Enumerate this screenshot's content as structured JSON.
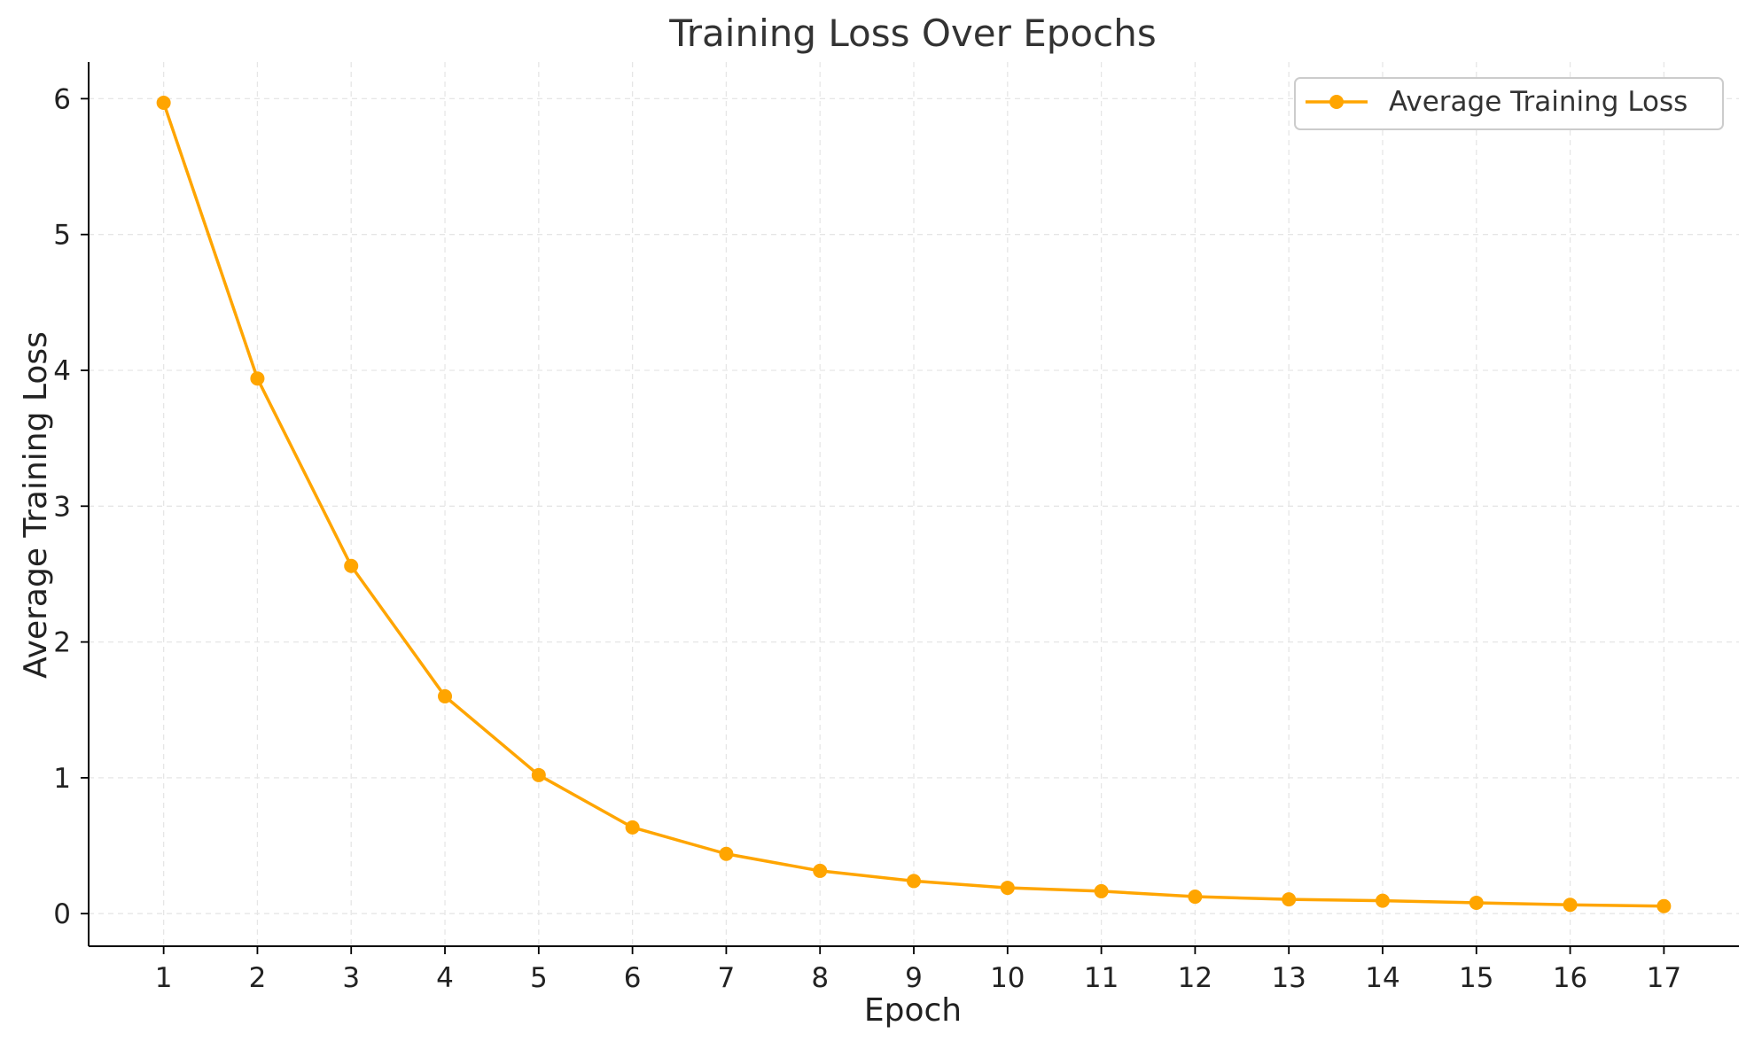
{
  "chart_data": {
    "type": "line",
    "title": "Training Loss Over Epochs",
    "xlabel": "Epoch",
    "ylabel": "Average Training Loss",
    "x": [
      1,
      2,
      3,
      4,
      5,
      6,
      7,
      8,
      9,
      10,
      11,
      12,
      13,
      14,
      15,
      16,
      17
    ],
    "series": [
      {
        "name": "Average Training Loss",
        "color": "#FFA500",
        "marker": "circle",
        "values": [
          5.97,
          3.94,
          2.56,
          1.6,
          1.02,
          0.635,
          0.44,
          0.315,
          0.24,
          0.19,
          0.165,
          0.125,
          0.105,
          0.095,
          0.08,
          0.065,
          0.055
        ]
      }
    ],
    "xlim": [
      0.2,
      17.8
    ],
    "ylim": [
      -0.24,
      6.27
    ],
    "xticks": [
      "1",
      "2",
      "3",
      "4",
      "5",
      "6",
      "7",
      "8",
      "9",
      "10",
      "11",
      "12",
      "13",
      "14",
      "15",
      "16",
      "17"
    ],
    "yticks": [
      "0",
      "1",
      "2",
      "3",
      "4",
      "5",
      "6"
    ],
    "grid": true,
    "grid_style": "dashed",
    "legend_position": "top-right",
    "spines": [
      "left",
      "bottom"
    ]
  }
}
